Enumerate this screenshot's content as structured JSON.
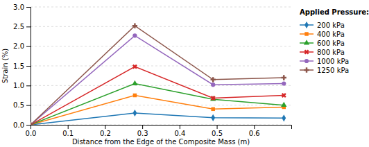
{
  "chart_data": {
    "type": "line",
    "title": "Applied Pressure:",
    "x_label": "Distance from the Edge of the Composite Mass (m)",
    "y_label": "Strain (%)",
    "x": [
      0.0,
      0.28,
      0.49,
      0.68
    ],
    "series": [
      {
        "name": "200 kPa",
        "marker": "diamond",
        "values": [
          0.0,
          0.3,
          0.18,
          0.17
        ]
      },
      {
        "name": "400 kPa",
        "marker": "square",
        "values": [
          0.0,
          0.75,
          0.4,
          0.45
        ]
      },
      {
        "name": "600 kPa",
        "marker": "triangle",
        "values": [
          0.0,
          1.05,
          0.65,
          0.5
        ]
      },
      {
        "name": "800 kPa",
        "marker": "x",
        "values": [
          0.0,
          1.48,
          0.68,
          0.75
        ]
      },
      {
        "name": "1000 kPa",
        "marker": "circle",
        "values": [
          0.0,
          2.27,
          1.02,
          1.05
        ]
      },
      {
        "name": "1250 kPa",
        "marker": "plus",
        "values": [
          0.0,
          2.52,
          1.15,
          1.2
        ]
      }
    ],
    "xlim": [
      0.0,
      0.7
    ],
    "ylim": [
      0.0,
      3.0
    ],
    "xticks": [
      {
        "value": 0,
        "label": "0.0"
      },
      0.1,
      0.2,
      0.3,
      0.4,
      0.5,
      0.6
    ],
    "yticks": [
      {
        "value": 0,
        "label": "0.0"
      },
      0.5,
      {
        "value": 1,
        "label": "1.0"
      },
      1.5,
      {
        "value": 2,
        "label": "2.0"
      },
      2.5,
      {
        "value": 3,
        "label": "3.0"
      }
    ],
    "grid": true,
    "legend": "right"
  }
}
